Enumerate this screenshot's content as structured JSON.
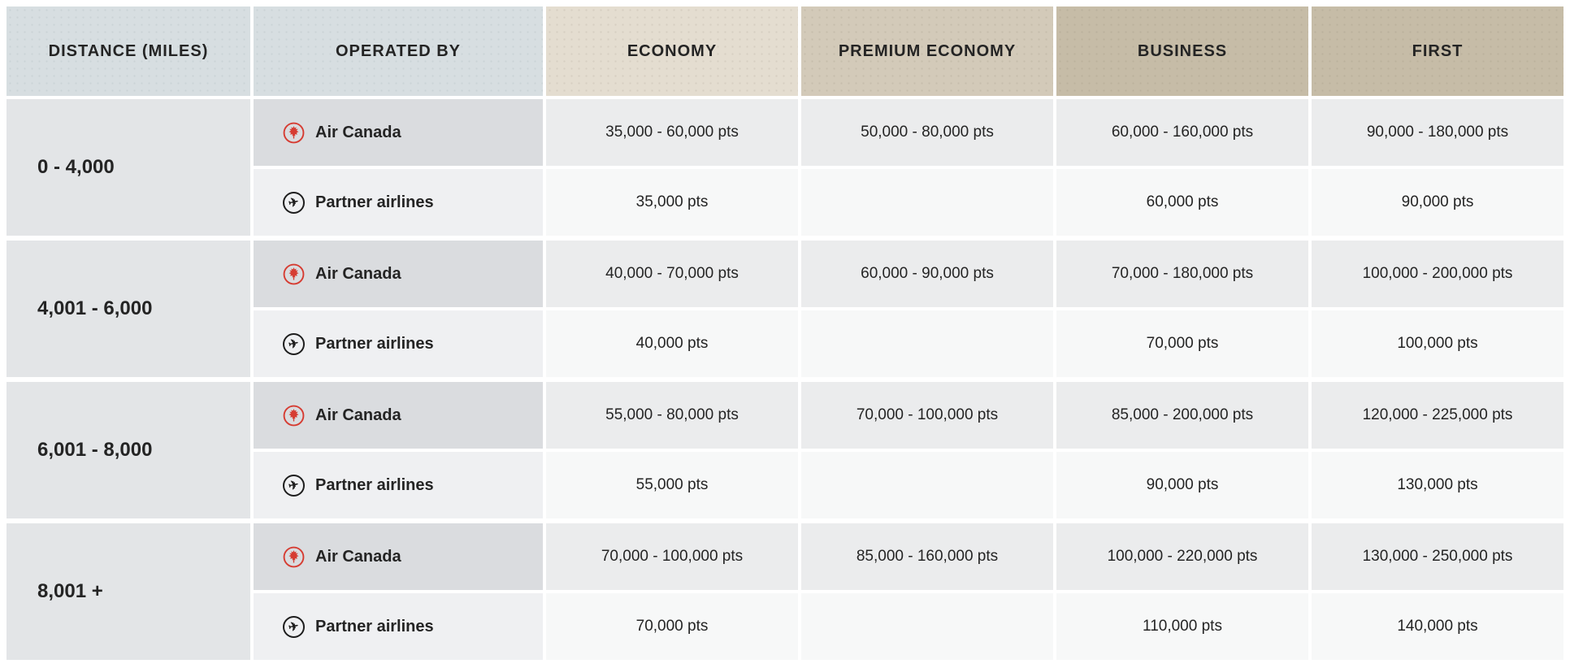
{
  "colors": {
    "header_neutral": "#d7dee1",
    "header_economy": "#e4ddd0",
    "header_premium_economy": "#d3cab9",
    "header_business_first": "#c6bca7",
    "air_canada_red": "#d63c32",
    "band_distance_bg": "#e3e5e7",
    "text": "#242424"
  },
  "table": {
    "headers": {
      "distance": "DISTANCE (MILES)",
      "operated_by": "OPERATED BY",
      "economy": "ECONOMY",
      "premium_economy": "PREMIUM ECONOMY",
      "business": "BUSINESS",
      "first": "FIRST"
    },
    "operator_labels": {
      "air_canada": "Air Canada",
      "partner": "Partner airlines"
    },
    "bands": [
      {
        "distance": "0 - 4,000",
        "air_canada": {
          "economy": "35,000 - 60,000 pts",
          "premium_economy": "50,000 - 80,000 pts",
          "business": "60,000 - 160,000 pts",
          "first": "90,000 - 180,000 pts"
        },
        "partner": {
          "economy": "35,000 pts",
          "premium_economy": "",
          "business": "60,000 pts",
          "first": "90,000 pts"
        }
      },
      {
        "distance": "4,001 - 6,000",
        "air_canada": {
          "economy": "40,000 - 70,000 pts",
          "premium_economy": "60,000 - 90,000 pts",
          "business": "70,000 - 180,000 pts",
          "first": "100,000 - 200,000 pts"
        },
        "partner": {
          "economy": "40,000 pts",
          "premium_economy": "",
          "business": "70,000 pts",
          "first": "100,000 pts"
        }
      },
      {
        "distance": "6,001 - 8,000",
        "air_canada": {
          "economy": "55,000 - 80,000 pts",
          "premium_economy": "70,000 - 100,000 pts",
          "business": "85,000 - 200,000 pts",
          "first": "120,000 - 225,000 pts"
        },
        "partner": {
          "economy": "55,000 pts",
          "premium_economy": "",
          "business": "90,000 pts",
          "first": "130,000 pts"
        }
      },
      {
        "distance": "8,001 +",
        "air_canada": {
          "economy": "70,000 - 100,000 pts",
          "premium_economy": "85,000 - 160,000 pts",
          "business": "100,000 - 220,000 pts",
          "first": "130,000 - 250,000 pts"
        },
        "partner": {
          "economy": "70,000 pts",
          "premium_economy": "",
          "business": "110,000 pts",
          "first": "140,000 pts"
        }
      }
    ]
  },
  "icons": {
    "air_canada": "maple-leaf-roundel-icon",
    "partner": "airplane-circle-icon",
    "partner_glyph": "✈"
  },
  "chart_data": {
    "type": "table",
    "columns": [
      "DISTANCE (MILES)",
      "OPERATED BY",
      "ECONOMY",
      "PREMIUM ECONOMY",
      "BUSINESS",
      "FIRST"
    ],
    "rows": [
      [
        "0 - 4,000",
        "Air Canada",
        "35,000 - 60,000 pts",
        "50,000 - 80,000 pts",
        "60,000 - 160,000 pts",
        "90,000 - 180,000 pts"
      ],
      [
        "0 - 4,000",
        "Partner airlines",
        "35,000 pts",
        "",
        "60,000 pts",
        "90,000 pts"
      ],
      [
        "4,001 - 6,000",
        "Air Canada",
        "40,000 - 70,000 pts",
        "60,000 - 90,000 pts",
        "70,000 - 180,000 pts",
        "100,000 - 200,000 pts"
      ],
      [
        "4,001 - 6,000",
        "Partner airlines",
        "40,000 pts",
        "",
        "70,000 pts",
        "100,000 pts"
      ],
      [
        "6,001 - 8,000",
        "Air Canada",
        "55,000 - 80,000 pts",
        "70,000 - 100,000 pts",
        "85,000 - 200,000 pts",
        "120,000 - 225,000 pts"
      ],
      [
        "6,001 - 8,000",
        "Partner airlines",
        "55,000 pts",
        "",
        "90,000 pts",
        "130,000 pts"
      ],
      [
        "8,001 +",
        "Air Canada",
        "70,000 - 100,000 pts",
        "85,000 - 160,000 pts",
        "100,000 - 220,000 pts",
        "130,000 - 250,000 pts"
      ],
      [
        "8,001 +",
        "Partner airlines",
        "70,000 pts",
        "",
        "110,000 pts",
        "140,000 pts"
      ]
    ]
  }
}
